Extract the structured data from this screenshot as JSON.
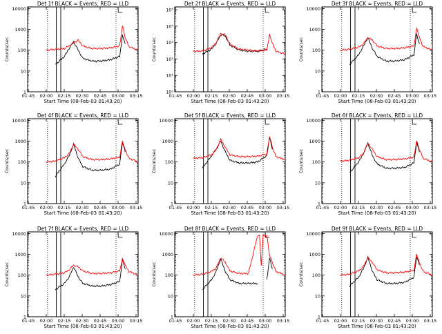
{
  "colors": {
    "events": "#000000",
    "lld": "#ff0000",
    "axis": "#000000"
  },
  "common": {
    "xlabel": "Start Time (08-Feb-03 01:43:20)",
    "ylabel": "Counts/sec",
    "xticks": [
      "01:45",
      "02:00",
      "02:15",
      "02:30",
      "02:45",
      "03:00",
      "03:15"
    ]
  },
  "chart_data": [
    {
      "type": "line",
      "title": "Det 1f BLACK = Events, RED = LLD",
      "scale": "log",
      "yticks": [
        "1",
        "10",
        "100",
        "1000",
        "10000"
      ],
      "ylim": [
        1,
        12000
      ],
      "x_minutes": [
        0,
        10,
        20,
        30,
        40,
        45,
        50,
        55,
        60,
        70,
        80,
        90,
        100,
        103,
        106,
        110,
        120
      ],
      "series": [
        {
          "name": "Events",
          "values": [
            null,
            null,
            null,
            20,
            50,
            120,
            250,
            100,
            40,
            30,
            30,
            35,
            50,
            500,
            200,
            null,
            null
          ]
        },
        {
          "name": "LLD",
          "values": [
            null,
            null,
            100,
            110,
            120,
            160,
            230,
            300,
            160,
            120,
            120,
            130,
            160,
            1500,
            400,
            150,
            100
          ]
        }
      ]
    },
    {
      "type": "line",
      "title": "Det 2f BLACK = Events, RED = LLD",
      "scale": "log",
      "yticks": [
        "10⁰",
        "10¹",
        "10²",
        "10³",
        "10⁴",
        "10⁵"
      ],
      "ylim": [
        1,
        150000
      ],
      "x_minutes": [
        0,
        10,
        20,
        30,
        40,
        45,
        50,
        55,
        60,
        70,
        80,
        90,
        100,
        103,
        106,
        110,
        120
      ],
      "series": [
        {
          "name": "Events",
          "values": [
            null,
            null,
            null,
            200,
            400,
            900,
            3000,
            2500,
            700,
            350,
            300,
            300,
            400,
            null,
            null,
            null,
            null
          ]
        },
        {
          "name": "LLD",
          "values": [
            null,
            null,
            300,
            300,
            500,
            1000,
            3500,
            3000,
            800,
            400,
            350,
            300,
            350,
            3000,
            900,
            300,
            200
          ]
        }
      ]
    },
    {
      "type": "line",
      "title": "Det 3f BLACK = Events, RED = LLD",
      "scale": "log",
      "yticks": [
        "1",
        "10",
        "100",
        "1000",
        "10000"
      ],
      "ylim": [
        1,
        12000
      ],
      "x_minutes": [
        0,
        10,
        20,
        30,
        40,
        45,
        50,
        55,
        60,
        70,
        80,
        90,
        100,
        103,
        106,
        110,
        120
      ],
      "series": [
        {
          "name": "Events",
          "values": [
            null,
            null,
            null,
            20,
            60,
            150,
            400,
            120,
            50,
            30,
            30,
            35,
            60,
            600,
            200,
            null,
            null
          ]
        },
        {
          "name": "LLD",
          "values": [
            null,
            null,
            100,
            110,
            140,
            200,
            400,
            300,
            160,
            120,
            120,
            130,
            160,
            1200,
            400,
            150,
            100
          ]
        }
      ]
    },
    {
      "type": "line",
      "title": "Det 4f BLACK = Events, RED = LLD",
      "scale": "log",
      "yticks": [
        "1",
        "10",
        "100",
        "1000",
        "10000"
      ],
      "ylim": [
        1,
        12000
      ],
      "x_minutes": [
        0,
        10,
        20,
        30,
        40,
        45,
        50,
        55,
        60,
        70,
        80,
        90,
        100,
        103,
        106,
        110,
        120
      ],
      "series": [
        {
          "name": "Events",
          "values": [
            null,
            null,
            null,
            20,
            80,
            200,
            700,
            150,
            60,
            40,
            40,
            45,
            80,
            900,
            300,
            null,
            null
          ]
        },
        {
          "name": "LLD",
          "values": [
            null,
            null,
            100,
            110,
            160,
            250,
            700,
            400,
            180,
            130,
            130,
            140,
            170,
            1000,
            400,
            150,
            100
          ]
        }
      ]
    },
    {
      "type": "line",
      "title": "Det 5f BLACK = Events, RED = LLD",
      "scale": "log",
      "yticks": [
        "1",
        "10",
        "100",
        "1000",
        "10000"
      ],
      "ylim": [
        1,
        12000
      ],
      "x_minutes": [
        0,
        10,
        20,
        30,
        40,
        45,
        50,
        55,
        60,
        70,
        80,
        90,
        100,
        103,
        106,
        110,
        120
      ],
      "series": [
        {
          "name": "Events",
          "values": [
            null,
            null,
            null,
            50,
            200,
            400,
            1000,
            300,
            120,
            90,
            90,
            100,
            200,
            1500,
            400,
            null,
            null
          ]
        },
        {
          "name": "LLD",
          "values": [
            null,
            null,
            150,
            160,
            220,
            400,
            1200,
            500,
            220,
            180,
            180,
            190,
            240,
            1800,
            500,
            180,
            130
          ]
        }
      ]
    },
    {
      "type": "line",
      "title": "Det 6f BLACK = Events, RED = LLD",
      "scale": "log",
      "yticks": [
        "1",
        "10",
        "100",
        "1000",
        "10000"
      ],
      "ylim": [
        1,
        12000
      ],
      "x_minutes": [
        0,
        10,
        20,
        30,
        40,
        45,
        50,
        55,
        60,
        70,
        80,
        90,
        100,
        103,
        106,
        110,
        120
      ],
      "series": [
        {
          "name": "Events",
          "values": [
            null,
            null,
            null,
            30,
            100,
            250,
            800,
            200,
            80,
            50,
            50,
            55,
            90,
            900,
            300,
            null,
            null
          ]
        },
        {
          "name": "LLD",
          "values": [
            null,
            null,
            110,
            120,
            160,
            250,
            800,
            400,
            180,
            130,
            130,
            140,
            170,
            1000,
            400,
            150,
            100
          ]
        }
      ]
    },
    {
      "type": "line",
      "title": "Det 7f BLACK = Events, RED = LLD",
      "scale": "log",
      "yticks": [
        "1",
        "10",
        "100",
        "1000",
        "10000"
      ],
      "ylim": [
        1,
        12000
      ],
      "x_minutes": [
        0,
        10,
        20,
        30,
        40,
        45,
        50,
        55,
        60,
        70,
        80,
        90,
        100,
        103,
        106,
        110,
        120
      ],
      "series": [
        {
          "name": "Events",
          "values": [
            null,
            null,
            null,
            20,
            40,
            80,
            250,
            80,
            40,
            30,
            30,
            35,
            50,
            600,
            200,
            null,
            null
          ]
        },
        {
          "name": "LLD",
          "values": [
            null,
            null,
            100,
            110,
            130,
            180,
            300,
            250,
            160,
            120,
            120,
            130,
            160,
            600,
            300,
            150,
            100
          ]
        }
      ]
    },
    {
      "type": "line",
      "title": "Det 8f BLACK = Events, RED = LLD",
      "scale": "log",
      "yticks": [
        "1",
        "10",
        "100",
        "1000",
        "10000"
      ],
      "ylim": [
        1,
        12000
      ],
      "x_minutes": [
        0,
        10,
        20,
        30,
        40,
        45,
        50,
        55,
        60,
        70,
        80,
        90,
        92,
        94,
        96,
        100,
        103,
        106,
        110,
        120
      ],
      "series": [
        {
          "name": "Events",
          "values": [
            null,
            null,
            null,
            20,
            60,
            150,
            600,
            150,
            60,
            40,
            40,
            40,
            null,
            null,
            null,
            60,
            700,
            200,
            null,
            null
          ]
        },
        {
          "name": "LLD",
          "values": [
            null,
            null,
            100,
            110,
            150,
            220,
            700,
            400,
            160,
            120,
            120,
            8000,
            8000,
            300,
            8000,
            8000,
            900,
            400,
            150,
            100
          ]
        }
      ]
    },
    {
      "type": "line",
      "title": "Det 9f BLACK = Events, RED = LLD",
      "scale": "log",
      "yticks": [
        "1",
        "10",
        "100",
        "1000",
        "10000"
      ],
      "ylim": [
        1,
        12000
      ],
      "x_minutes": [
        0,
        10,
        20,
        30,
        40,
        45,
        50,
        55,
        60,
        70,
        80,
        90,
        100,
        103,
        106,
        110,
        120
      ],
      "series": [
        {
          "name": "Events",
          "values": [
            null,
            null,
            null,
            30,
            80,
            200,
            700,
            150,
            60,
            40,
            40,
            45,
            80,
            800,
            300,
            null,
            null
          ]
        },
        {
          "name": "LLD",
          "values": [
            null,
            null,
            100,
            110,
            160,
            250,
            700,
            400,
            180,
            130,
            130,
            140,
            170,
            1000,
            400,
            150,
            100
          ]
        }
      ]
    }
  ]
}
